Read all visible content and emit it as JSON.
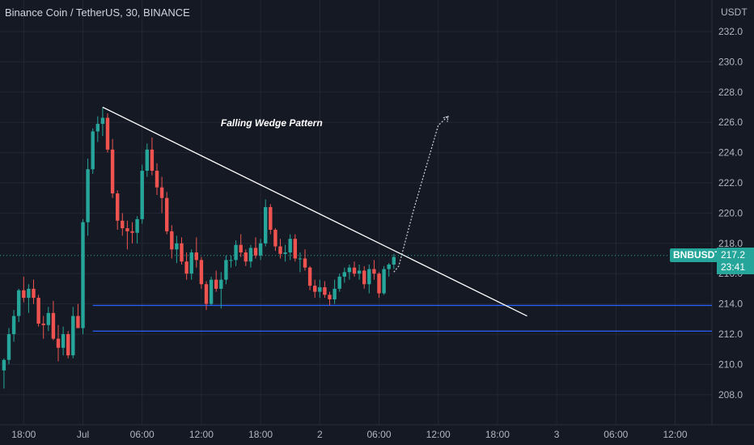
{
  "header": {
    "title": "Binance Coin / TetherUS, 30, BINANCE",
    "currency": "USDT"
  },
  "current": {
    "symbol": "BNBUSDT",
    "price": "217.2",
    "countdown": "23:41"
  },
  "colors": {
    "background": "#151924",
    "up": "#26a69a",
    "down": "#ef5350",
    "support": "#2962ff",
    "trendline": "#ffffff",
    "current_price_line": "#26a69a"
  },
  "chart_data": {
    "type": "candlestick",
    "title": "Binance Coin / TetherUS, 30, BINANCE",
    "y_unit": "USDT",
    "y_ticks": [
      208,
      210,
      212,
      214,
      216,
      218,
      220,
      222,
      224,
      226,
      228,
      230,
      232
    ],
    "y_tick_labels": [
      "208.0",
      "210.0",
      "212.0",
      "214.0",
      "216.0",
      "218.0",
      "220.0",
      "222.0",
      "224.0",
      "226.0",
      "228.0",
      "230.0",
      "232.0"
    ],
    "ylim": [
      206.4,
      233.3
    ],
    "x_ticks": [
      {
        "label": "18:00",
        "bar": 4
      },
      {
        "label": "Jul",
        "bar": 16
      },
      {
        "label": "06:00",
        "bar": 28
      },
      {
        "label": "12:00",
        "bar": 40
      },
      {
        "label": "18:00",
        "bar": 52
      },
      {
        "label": "2",
        "bar": 64
      },
      {
        "label": "06:00",
        "bar": 76
      },
      {
        "label": "12:00",
        "bar": 88
      },
      {
        "label": "18:00",
        "bar": 100
      },
      {
        "label": "3",
        "bar": 112
      },
      {
        "label": "06:00",
        "bar": 124
      },
      {
        "label": "12:00",
        "bar": 136
      }
    ],
    "grid": true,
    "candles": [
      [
        209.6,
        210.4,
        208.4,
        210.3
      ],
      [
        210.3,
        212.4,
        210.0,
        212.0
      ],
      [
        212.0,
        213.6,
        211.5,
        213.2
      ],
      [
        213.2,
        215.0,
        212.8,
        214.9
      ],
      [
        214.9,
        215.8,
        214.1,
        214.4
      ],
      [
        214.4,
        215.3,
        213.4,
        215.0
      ],
      [
        215.0,
        215.6,
        214.0,
        214.4
      ],
      [
        214.4,
        214.6,
        212.5,
        212.7
      ],
      [
        212.7,
        213.2,
        211.7,
        212.6
      ],
      [
        212.6,
        213.8,
        212.2,
        213.4
      ],
      [
        213.4,
        214.2,
        211.6,
        211.7
      ],
      [
        211.7,
        212.6,
        210.2,
        211.1
      ],
      [
        211.1,
        212.5,
        210.6,
        212.0
      ],
      [
        212.0,
        212.2,
        210.4,
        210.6
      ],
      [
        210.6,
        213.8,
        210.4,
        213.2
      ],
      [
        213.2,
        214.0,
        212.6,
        212.4
      ],
      [
        212.4,
        219.6,
        212.0,
        219.4
      ],
      [
        219.4,
        223.6,
        218.5,
        222.9
      ],
      [
        222.9,
        225.6,
        222.6,
        225.4
      ],
      [
        225.4,
        226.4,
        224.7,
        225.9
      ],
      [
        225.9,
        227.0,
        225.1,
        226.3
      ],
      [
        226.3,
        226.6,
        224.0,
        224.2
      ],
      [
        224.2,
        224.9,
        221.0,
        221.3
      ],
      [
        221.3,
        221.5,
        218.9,
        219.5
      ],
      [
        219.5,
        220.0,
        218.5,
        219.0
      ],
      [
        219.0,
        219.5,
        217.6,
        218.8
      ],
      [
        218.8,
        219.4,
        218.0,
        218.7
      ],
      [
        218.7,
        219.8,
        218.0,
        219.6
      ],
      [
        219.6,
        223.2,
        219.3,
        222.8
      ],
      [
        222.8,
        224.6,
        222.4,
        224.2
      ],
      [
        224.2,
        225.0,
        222.5,
        222.8
      ],
      [
        222.8,
        223.3,
        221.2,
        221.7
      ],
      [
        221.7,
        222.4,
        220.0,
        221.0
      ],
      [
        221.0,
        221.4,
        218.6,
        218.8
      ],
      [
        218.8,
        219.2,
        217.0,
        217.6
      ],
      [
        217.6,
        218.5,
        216.7,
        218.0
      ],
      [
        218.0,
        218.4,
        216.6,
        216.8
      ],
      [
        216.8,
        217.4,
        215.6,
        216.0
      ],
      [
        216.0,
        217.6,
        215.6,
        217.4
      ],
      [
        217.4,
        218.4,
        216.4,
        216.9
      ],
      [
        216.9,
        217.1,
        215.0,
        215.3
      ],
      [
        215.3,
        215.5,
        213.6,
        214.0
      ],
      [
        214.0,
        215.8,
        213.9,
        215.6
      ],
      [
        215.6,
        216.2,
        214.8,
        215.0
      ],
      [
        215.0,
        216.1,
        213.7,
        215.6
      ],
      [
        215.6,
        217.2,
        215.3,
        216.9
      ],
      [
        216.9,
        217.2,
        216.4,
        216.9
      ],
      [
        216.9,
        218.2,
        216.5,
        217.9
      ],
      [
        217.9,
        218.6,
        217.1,
        217.4
      ],
      [
        217.4,
        217.6,
        216.5,
        216.8
      ],
      [
        216.8,
        217.9,
        216.4,
        217.7
      ],
      [
        217.7,
        218.4,
        217.0,
        217.2
      ],
      [
        217.2,
        218.3,
        216.9,
        218.0
      ],
      [
        218.0,
        220.9,
        217.8,
        220.4
      ],
      [
        220.4,
        220.6,
        218.6,
        218.9
      ],
      [
        218.9,
        219.0,
        217.5,
        217.8
      ],
      [
        217.8,
        218.3,
        217.0,
        217.3
      ],
      [
        217.3,
        217.9,
        216.8,
        217.4
      ],
      [
        217.4,
        218.6,
        216.9,
        218.3
      ],
      [
        218.3,
        218.6,
        216.8,
        217.0
      ],
      [
        217.0,
        217.4,
        216.1,
        217.0
      ],
      [
        217.0,
        217.6,
        216.2,
        216.4
      ],
      [
        216.4,
        216.5,
        214.9,
        215.2
      ],
      [
        215.2,
        215.6,
        214.4,
        214.8
      ],
      [
        214.8,
        215.6,
        214.4,
        215.1
      ],
      [
        215.1,
        215.5,
        214.4,
        214.6
      ],
      [
        214.6,
        214.8,
        213.9,
        214.3
      ],
      [
        214.3,
        215.6,
        214.0,
        215.0
      ],
      [
        215.0,
        216.0,
        214.8,
        215.8
      ],
      [
        215.8,
        216.4,
        215.4,
        216.1
      ],
      [
        216.1,
        216.6,
        215.6,
        216.4
      ],
      [
        216.4,
        216.8,
        215.8,
        216.0
      ],
      [
        216.0,
        216.6,
        215.6,
        216.2
      ],
      [
        216.2,
        216.5,
        215.0,
        215.3
      ],
      [
        215.3,
        216.6,
        214.7,
        216.3
      ],
      [
        216.3,
        216.9,
        215.6,
        216.0
      ],
      [
        216.0,
        216.1,
        214.4,
        214.7
      ],
      [
        214.7,
        216.5,
        214.6,
        216.3
      ],
      [
        216.3,
        216.7,
        215.8,
        216.6
      ],
      [
        216.6,
        217.3,
        216.3,
        217.1
      ]
    ],
    "support_levels": [
      213.9,
      212.2
    ],
    "current_price": 217.2,
    "trendline": {
      "from": {
        "bar": 20,
        "price": 227.0
      },
      "to": {
        "bar": 106,
        "price": 213.2
      }
    },
    "projection": {
      "points": [
        {
          "bar": 79,
          "price": 216.1
        },
        {
          "bar": 80,
          "price": 216.5
        },
        {
          "bar": 83,
          "price": 220.2
        },
        {
          "bar": 88,
          "price": 225.8
        },
        {
          "bar": 90,
          "price": 226.4
        }
      ]
    },
    "annotation": {
      "text": "Falling Wedge Pattern",
      "bar": 50,
      "price": 226.0
    }
  }
}
